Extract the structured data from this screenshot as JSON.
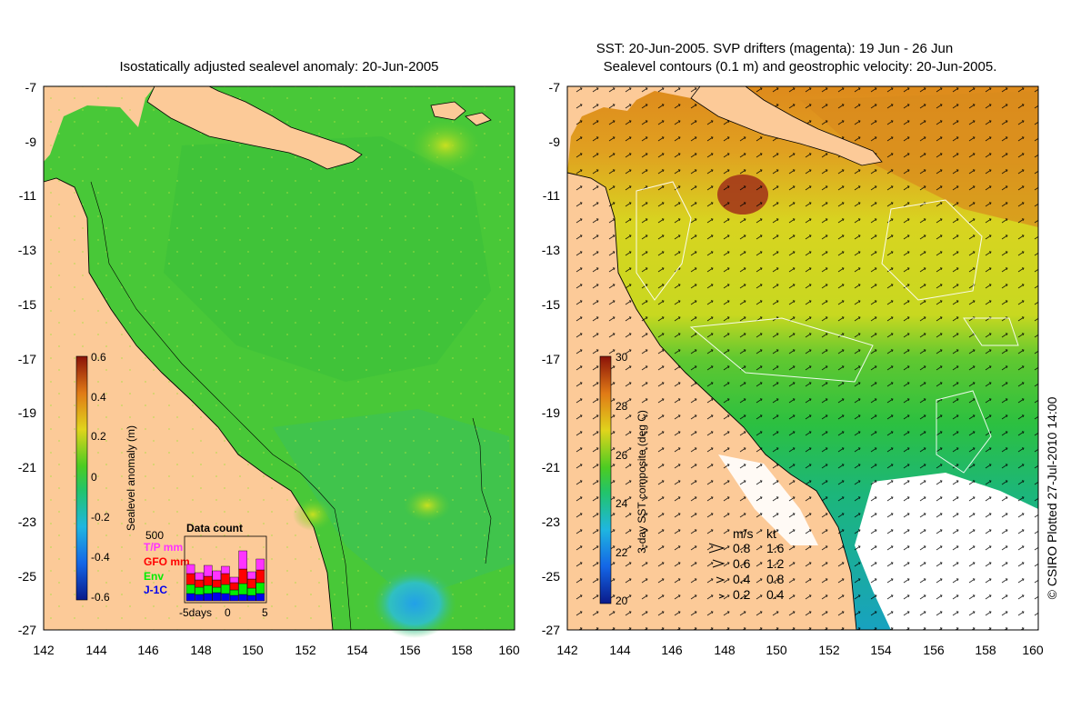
{
  "left_panel": {
    "title": "Isostatically adjusted sealevel anomaly: 20-Jun-2005",
    "colorbar": {
      "label": "Sealevel anomaly (m)",
      "ticks": [
        "0.6",
        "0.4",
        "0.2",
        "0",
        "-0.2",
        "-0.4",
        "-0.6"
      ]
    },
    "data_count": {
      "title": "Data count",
      "scale_label": "500",
      "legend": [
        {
          "label": "T/P mm",
          "color": "#ff33ff"
        },
        {
          "label": "GFO mm",
          "color": "#ff0000"
        },
        {
          "label": "Env",
          "color": "#00ee00"
        },
        {
          "label": "J-1C",
          "color": "#0000ee"
        }
      ],
      "x_labels": [
        "-5days",
        "0",
        "5"
      ]
    }
  },
  "right_panel": {
    "title_line1": "SST: 20-Jun-2005. SVP drifters (magenta): 19 Jun - 26 Jun",
    "title_line2": "Sealevel contours (0.1 m) and geostrophic velocity: 20-Jun-2005.",
    "colorbar": {
      "label": "3-day SST composite (deg C)",
      "ticks": [
        "30",
        "28",
        "26",
        "24",
        "22",
        "20"
      ]
    },
    "velocity_legend": {
      "header_ms": "m/s",
      "header_kt": "kt",
      "rows": [
        {
          "ms": "0.8",
          "kt": "1.6"
        },
        {
          "ms": "0.6",
          "kt": "1.2"
        },
        {
          "ms": "0.4",
          "kt": "0.8"
        },
        {
          "ms": "0.2",
          "kt": "0.4"
        }
      ]
    }
  },
  "axes": {
    "lat_labels": [
      "-7",
      "-9",
      "-11",
      "-13",
      "-15",
      "-17",
      "-19",
      "-21",
      "-23",
      "-25",
      "-27"
    ],
    "lon_labels": [
      "142",
      "144",
      "146",
      "148",
      "150",
      "152",
      "154",
      "156",
      "158",
      "160"
    ]
  },
  "credit": "© CSIRO Plotted 27-Jul-2010 14:00",
  "colors": {
    "land": "#fcca98",
    "sea_green": "#44c832",
    "sst_orange": "#e08a20",
    "sst_yellow": "#d8d820"
  }
}
